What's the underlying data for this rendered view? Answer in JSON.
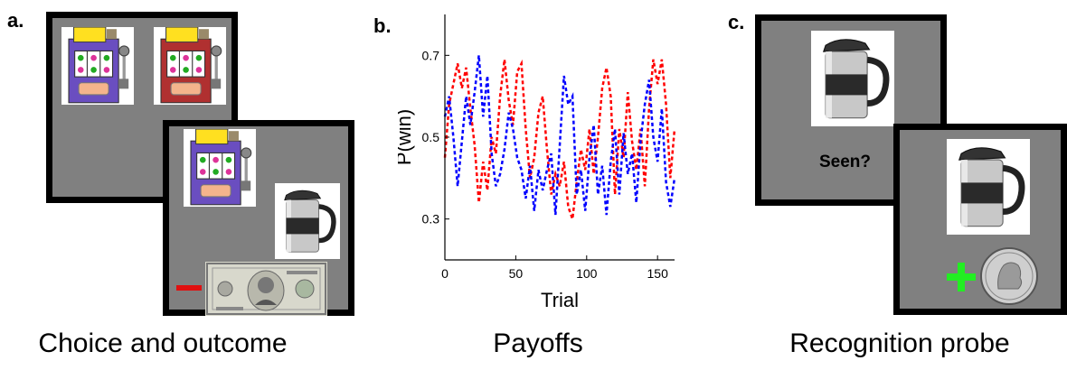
{
  "panels": {
    "a": {
      "letter": "a.",
      "caption": "Choice and outcome"
    },
    "b": {
      "letter": "b.",
      "caption": "Payoffs"
    },
    "c": {
      "letter": "c.",
      "caption": "Recognition probe",
      "prompt": "Seen?"
    }
  },
  "colors": {
    "screen_gray": "#808080",
    "red_series": "#ff0000",
    "blue_series": "#0000ff",
    "minus_red": "#e01010",
    "plus_green": "#22ee22"
  },
  "icons": [
    "slot-machine-icon",
    "travel-mug-icon",
    "five-dollar-bill-icon",
    "minus-sign-icon",
    "plus-sign-icon",
    "quarter-coin-icon"
  ],
  "chart_data": {
    "type": "line",
    "title": "",
    "xlabel": "Trial",
    "ylabel": "P(win)",
    "xlim": [
      0,
      162
    ],
    "ylim": [
      0.2,
      0.8
    ],
    "xticks": [
      0,
      50,
      100,
      150
    ],
    "yticks": [
      0.3,
      0.5,
      0.7
    ],
    "xtick_labels": [
      "0",
      "50",
      "100",
      "150"
    ],
    "ytick_labels": [
      "0.3",
      "0.5",
      "0.7"
    ],
    "grid": false,
    "legend": "none",
    "series": [
      {
        "color": "#ff0000",
        "x": [
          0,
          3,
          6,
          9,
          12,
          15,
          18,
          21,
          24,
          27,
          30,
          33,
          36,
          39,
          42,
          45,
          48,
          51,
          54,
          57,
          60,
          63,
          66,
          69,
          72,
          75,
          78,
          81,
          84,
          87,
          90,
          93,
          96,
          99,
          102,
          105,
          108,
          111,
          114,
          117,
          120,
          123,
          126,
          129,
          132,
          135,
          138,
          141,
          144,
          147,
          150,
          153,
          156,
          159,
          162
        ],
        "values": [
          0.45,
          0.58,
          0.63,
          0.68,
          0.62,
          0.67,
          0.57,
          0.48,
          0.34,
          0.44,
          0.37,
          0.5,
          0.46,
          0.6,
          0.69,
          0.59,
          0.53,
          0.66,
          0.68,
          0.52,
          0.4,
          0.45,
          0.56,
          0.6,
          0.47,
          0.36,
          0.41,
          0.38,
          0.44,
          0.33,
          0.3,
          0.39,
          0.47,
          0.42,
          0.52,
          0.41,
          0.5,
          0.62,
          0.67,
          0.6,
          0.36,
          0.52,
          0.45,
          0.61,
          0.49,
          0.42,
          0.52,
          0.38,
          0.57,
          0.69,
          0.63,
          0.69,
          0.58,
          0.4,
          0.52
        ]
      },
      {
        "color": "#0000ff",
        "x": [
          0,
          3,
          6,
          9,
          12,
          15,
          18,
          21,
          24,
          27,
          30,
          33,
          36,
          39,
          42,
          45,
          48,
          51,
          54,
          57,
          60,
          63,
          66,
          69,
          72,
          75,
          78,
          81,
          84,
          87,
          90,
          93,
          96,
          99,
          102,
          105,
          108,
          111,
          114,
          117,
          120,
          123,
          126,
          129,
          132,
          135,
          138,
          141,
          144,
          147,
          150,
          153,
          156,
          159,
          162
        ],
        "values": [
          0.55,
          0.6,
          0.5,
          0.38,
          0.49,
          0.6,
          0.53,
          0.61,
          0.7,
          0.55,
          0.65,
          0.46,
          0.38,
          0.41,
          0.47,
          0.56,
          0.52,
          0.45,
          0.42,
          0.35,
          0.43,
          0.32,
          0.42,
          0.37,
          0.42,
          0.46,
          0.31,
          0.48,
          0.65,
          0.58,
          0.6,
          0.36,
          0.42,
          0.32,
          0.45,
          0.53,
          0.36,
          0.43,
          0.31,
          0.44,
          0.52,
          0.36,
          0.51,
          0.41,
          0.46,
          0.34,
          0.49,
          0.58,
          0.64,
          0.5,
          0.44,
          0.57,
          0.39,
          0.33,
          0.4
        ]
      }
    ]
  }
}
